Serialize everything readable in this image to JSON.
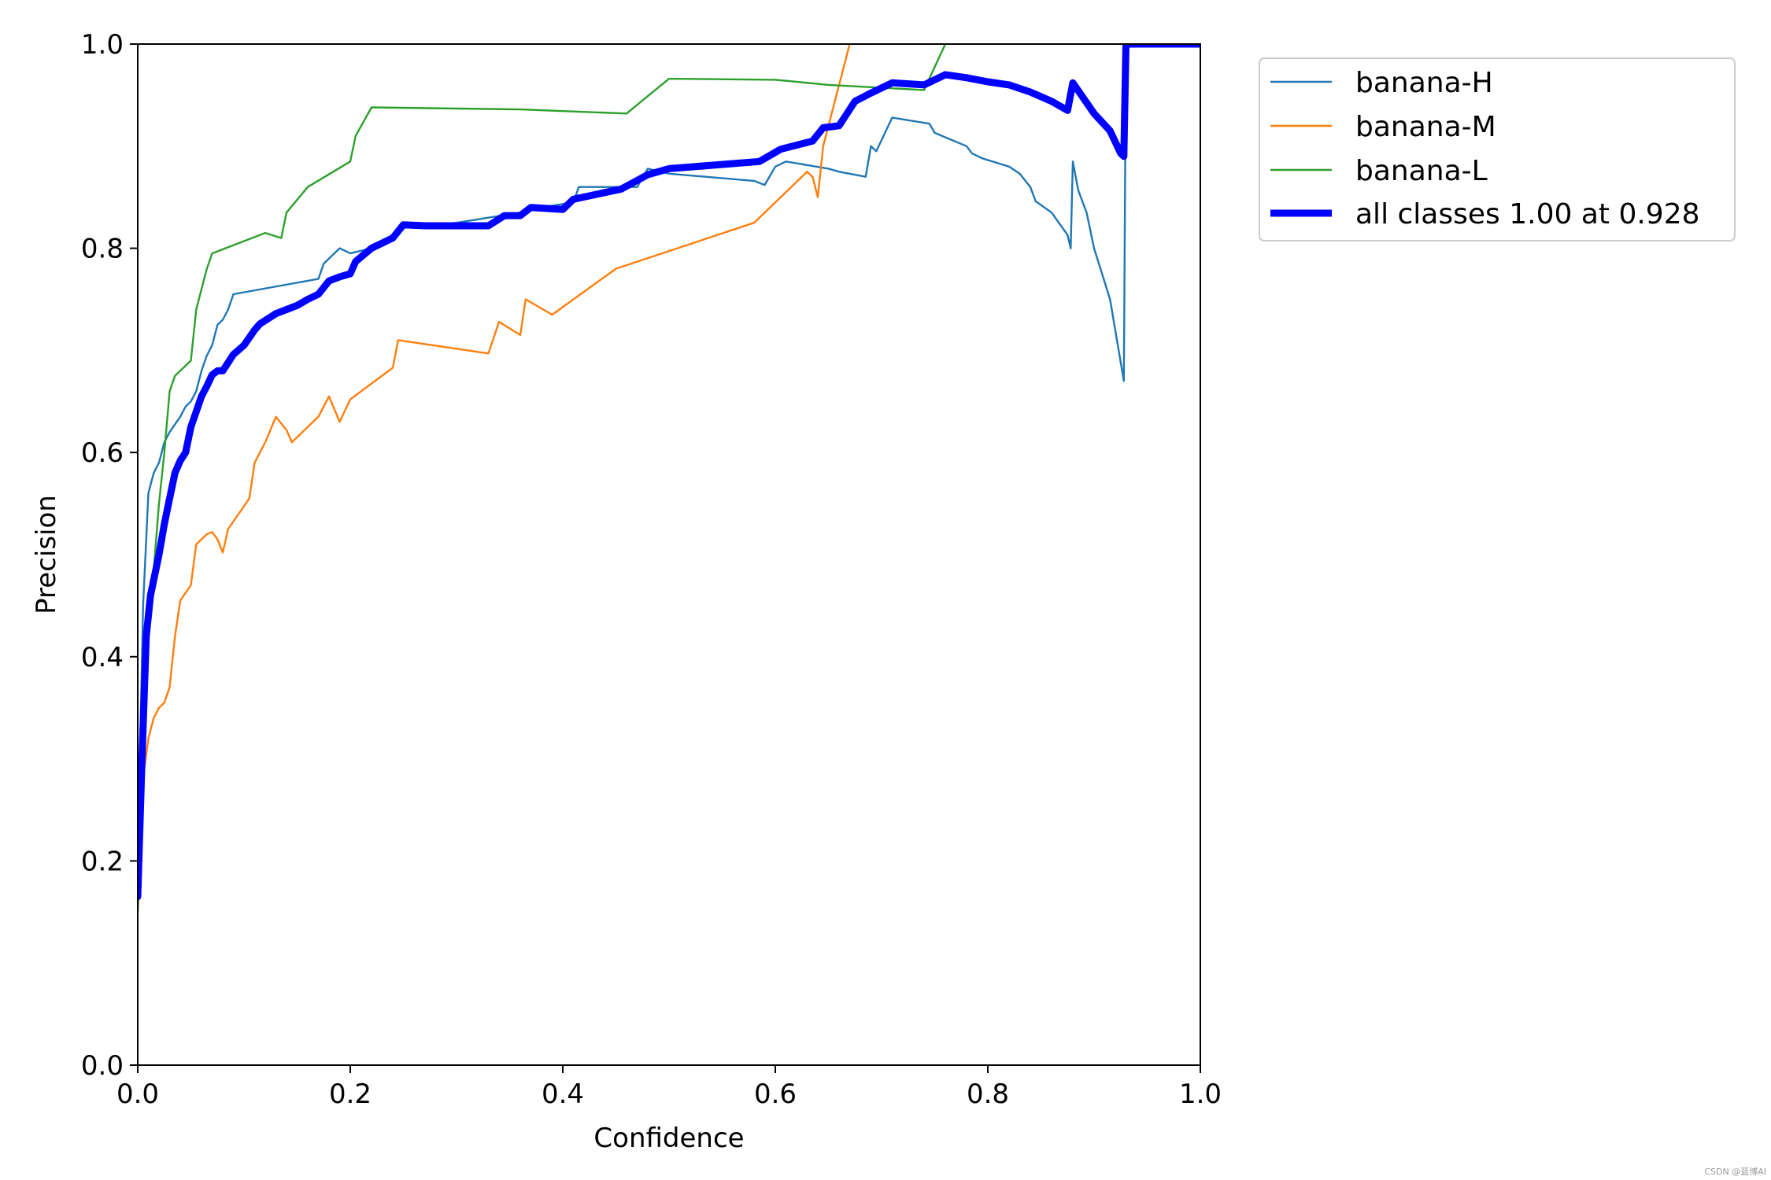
{
  "chart_data": {
    "type": "line",
    "title": "",
    "xlabel": "Confidence",
    "ylabel": "Precision",
    "xlim": [
      0,
      1
    ],
    "ylim": [
      0,
      1
    ],
    "xticks": [
      "0.0",
      "0.2",
      "0.4",
      "0.6",
      "0.8",
      "1.0"
    ],
    "yticks": [
      "0.0",
      "0.2",
      "0.4",
      "0.6",
      "0.8",
      "1.0"
    ],
    "grid": false,
    "legend_position": "upper right, outside plot",
    "series": [
      {
        "name": "banana-H",
        "color": "#1f77b4",
        "width": "thin",
        "points": [
          [
            0.0,
            0.2
          ],
          [
            0.005,
            0.45
          ],
          [
            0.01,
            0.56
          ],
          [
            0.015,
            0.58
          ],
          [
            0.02,
            0.59
          ],
          [
            0.025,
            0.61
          ],
          [
            0.03,
            0.62
          ],
          [
            0.04,
            0.635
          ],
          [
            0.045,
            0.645
          ],
          [
            0.05,
            0.65
          ],
          [
            0.055,
            0.66
          ],
          [
            0.06,
            0.68
          ],
          [
            0.065,
            0.695
          ],
          [
            0.07,
            0.705
          ],
          [
            0.075,
            0.725
          ],
          [
            0.08,
            0.73
          ],
          [
            0.085,
            0.74
          ],
          [
            0.09,
            0.755
          ],
          [
            0.17,
            0.77
          ],
          [
            0.175,
            0.785
          ],
          [
            0.19,
            0.8
          ],
          [
            0.2,
            0.795
          ],
          [
            0.22,
            0.8
          ],
          [
            0.25,
            0.82
          ],
          [
            0.3,
            0.825
          ],
          [
            0.36,
            0.835
          ],
          [
            0.38,
            0.84
          ],
          [
            0.41,
            0.845
          ],
          [
            0.415,
            0.86
          ],
          [
            0.47,
            0.86
          ],
          [
            0.48,
            0.878
          ],
          [
            0.5,
            0.873
          ],
          [
            0.58,
            0.866
          ],
          [
            0.59,
            0.862
          ],
          [
            0.6,
            0.88
          ],
          [
            0.61,
            0.885
          ],
          [
            0.65,
            0.878
          ],
          [
            0.66,
            0.875
          ],
          [
            0.685,
            0.87
          ],
          [
            0.69,
            0.9
          ],
          [
            0.695,
            0.895
          ],
          [
            0.71,
            0.928
          ],
          [
            0.745,
            0.922
          ],
          [
            0.75,
            0.913
          ],
          [
            0.78,
            0.9
          ],
          [
            0.785,
            0.893
          ],
          [
            0.795,
            0.888
          ],
          [
            0.82,
            0.88
          ],
          [
            0.83,
            0.873
          ],
          [
            0.84,
            0.86
          ],
          [
            0.845,
            0.846
          ],
          [
            0.86,
            0.835
          ],
          [
            0.875,
            0.813
          ],
          [
            0.878,
            0.8
          ],
          [
            0.88,
            0.885
          ],
          [
            0.885,
            0.857
          ],
          [
            0.893,
            0.835
          ],
          [
            0.9,
            0.8
          ],
          [
            0.915,
            0.75
          ],
          [
            0.928,
            0.67
          ],
          [
            0.93,
            1.0
          ],
          [
            1.0,
            1.0
          ]
        ]
      },
      {
        "name": "banana-M",
        "color": "#ff7f0e",
        "width": "thin",
        "points": [
          [
            0.0,
            0.25
          ],
          [
            0.005,
            0.28
          ],
          [
            0.01,
            0.32
          ],
          [
            0.015,
            0.34
          ],
          [
            0.02,
            0.35
          ],
          [
            0.025,
            0.355
          ],
          [
            0.03,
            0.37
          ],
          [
            0.035,
            0.42
          ],
          [
            0.04,
            0.455
          ],
          [
            0.05,
            0.47
          ],
          [
            0.055,
            0.51
          ],
          [
            0.065,
            0.52
          ],
          [
            0.07,
            0.522
          ],
          [
            0.075,
            0.515
          ],
          [
            0.08,
            0.502
          ],
          [
            0.085,
            0.525
          ],
          [
            0.105,
            0.555
          ],
          [
            0.11,
            0.59
          ],
          [
            0.12,
            0.61
          ],
          [
            0.13,
            0.635
          ],
          [
            0.14,
            0.622
          ],
          [
            0.145,
            0.61
          ],
          [
            0.17,
            0.635
          ],
          [
            0.18,
            0.655
          ],
          [
            0.19,
            0.63
          ],
          [
            0.2,
            0.652
          ],
          [
            0.24,
            0.683
          ],
          [
            0.245,
            0.71
          ],
          [
            0.33,
            0.697
          ],
          [
            0.34,
            0.728
          ],
          [
            0.36,
            0.715
          ],
          [
            0.365,
            0.75
          ],
          [
            0.39,
            0.735
          ],
          [
            0.45,
            0.78
          ],
          [
            0.58,
            0.825
          ],
          [
            0.63,
            0.875
          ],
          [
            0.635,
            0.87
          ],
          [
            0.64,
            0.85
          ],
          [
            0.645,
            0.9
          ],
          [
            0.665,
            0.98
          ],
          [
            0.67,
            1.0
          ]
        ]
      },
      {
        "name": "banana-L",
        "color": "#2ca02c",
        "width": "thin",
        "points": [
          [
            0.0,
            0.15
          ],
          [
            0.005,
            0.3
          ],
          [
            0.01,
            0.42
          ],
          [
            0.02,
            0.55
          ],
          [
            0.025,
            0.6
          ],
          [
            0.03,
            0.66
          ],
          [
            0.035,
            0.675
          ],
          [
            0.05,
            0.69
          ],
          [
            0.055,
            0.74
          ],
          [
            0.06,
            0.76
          ],
          [
            0.065,
            0.78
          ],
          [
            0.07,
            0.795
          ],
          [
            0.12,
            0.815
          ],
          [
            0.135,
            0.81
          ],
          [
            0.14,
            0.835
          ],
          [
            0.16,
            0.86
          ],
          [
            0.2,
            0.885
          ],
          [
            0.205,
            0.91
          ],
          [
            0.22,
            0.938
          ],
          [
            0.36,
            0.936
          ],
          [
            0.46,
            0.932
          ],
          [
            0.5,
            0.966
          ],
          [
            0.6,
            0.965
          ],
          [
            0.65,
            0.96
          ],
          [
            0.74,
            0.955
          ],
          [
            0.76,
            1.0
          ]
        ]
      },
      {
        "name": "all classes 1.00 at 0.928",
        "color": "#0000ff",
        "width": "thick",
        "points": [
          [
            0.0,
            0.165
          ],
          [
            0.004,
            0.3
          ],
          [
            0.008,
            0.42
          ],
          [
            0.012,
            0.46
          ],
          [
            0.016,
            0.48
          ],
          [
            0.02,
            0.5
          ],
          [
            0.025,
            0.53
          ],
          [
            0.03,
            0.555
          ],
          [
            0.035,
            0.58
          ],
          [
            0.04,
            0.592
          ],
          [
            0.045,
            0.6
          ],
          [
            0.05,
            0.625
          ],
          [
            0.055,
            0.64
          ],
          [
            0.06,
            0.655
          ],
          [
            0.065,
            0.665
          ],
          [
            0.07,
            0.676
          ],
          [
            0.075,
            0.68
          ],
          [
            0.08,
            0.68
          ],
          [
            0.085,
            0.688
          ],
          [
            0.09,
            0.696
          ],
          [
            0.1,
            0.705
          ],
          [
            0.11,
            0.72
          ],
          [
            0.115,
            0.726
          ],
          [
            0.13,
            0.736
          ],
          [
            0.14,
            0.74
          ],
          [
            0.15,
            0.744
          ],
          [
            0.16,
            0.75
          ],
          [
            0.17,
            0.755
          ],
          [
            0.18,
            0.768
          ],
          [
            0.19,
            0.772
          ],
          [
            0.2,
            0.775
          ],
          [
            0.205,
            0.787
          ],
          [
            0.22,
            0.8
          ],
          [
            0.24,
            0.81
          ],
          [
            0.25,
            0.823
          ],
          [
            0.27,
            0.822
          ],
          [
            0.33,
            0.822
          ],
          [
            0.345,
            0.832
          ],
          [
            0.36,
            0.832
          ],
          [
            0.37,
            0.84
          ],
          [
            0.4,
            0.838
          ],
          [
            0.41,
            0.848
          ],
          [
            0.455,
            0.858
          ],
          [
            0.48,
            0.872
          ],
          [
            0.5,
            0.878
          ],
          [
            0.585,
            0.885
          ],
          [
            0.605,
            0.897
          ],
          [
            0.635,
            0.905
          ],
          [
            0.645,
            0.918
          ],
          [
            0.66,
            0.92
          ],
          [
            0.675,
            0.944
          ],
          [
            0.69,
            0.952
          ],
          [
            0.71,
            0.962
          ],
          [
            0.74,
            0.96
          ],
          [
            0.76,
            0.97
          ],
          [
            0.78,
            0.967
          ],
          [
            0.8,
            0.963
          ],
          [
            0.82,
            0.96
          ],
          [
            0.84,
            0.953
          ],
          [
            0.86,
            0.944
          ],
          [
            0.875,
            0.935
          ],
          [
            0.88,
            0.962
          ],
          [
            0.89,
            0.947
          ],
          [
            0.9,
            0.932
          ],
          [
            0.915,
            0.915
          ],
          [
            0.925,
            0.893
          ],
          [
            0.928,
            0.89
          ],
          [
            0.93,
            1.0
          ],
          [
            1.0,
            1.0
          ]
        ]
      }
    ]
  },
  "watermark": "CSDN @蓝博AI"
}
